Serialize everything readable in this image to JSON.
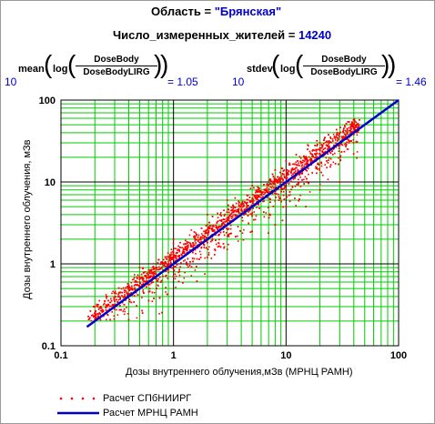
{
  "header": {
    "region_label": "Область = ",
    "region_value": "\"Брянская\"",
    "count_label": "Число_измеренных_жителей = ",
    "count_value": "14240"
  },
  "equations": {
    "mean": {
      "base": "10",
      "fn": "mean",
      "log": "log",
      "numerator": "DoseBody",
      "denominator": "DoseBodyLIRG",
      "result": "= 1.05"
    },
    "stdev": {
      "base": "10",
      "fn": "stdev",
      "log": "log",
      "numerator": "DoseBody",
      "denominator": "DoseBodyLIRG",
      "result": "= 1.46"
    }
  },
  "chart_data": {
    "type": "scatter",
    "xscale": "log",
    "yscale": "log",
    "xlim": [
      0.1,
      100
    ],
    "ylim": [
      0.1,
      100
    ],
    "x_ticks": [
      "0.1",
      "1",
      "10",
      "100"
    ],
    "y_ticks": [
      "0.1",
      "1",
      "10",
      "100"
    ],
    "xlabel": "Дозы внутреннего облучения,мЗв   (МРНЦ РАМН)",
    "ylabel": "Дозы внутреннего облучения, мЗв",
    "grid": true,
    "colors": {
      "scatter": "#ff0000",
      "line": "#0000cc",
      "grid_major": "#000000",
      "grid_minor": "#00cc00"
    },
    "series": [
      {
        "name": "Расчет СПбНИИРГ",
        "type": "scatter",
        "n": 14240,
        "log10_ratio_mean": 1.05,
        "log10_ratio_sd": 1.46,
        "x_range": [
          0.17,
          45
        ],
        "representative_points": [
          [
            0.2,
            0.25
          ],
          [
            0.3,
            0.35
          ],
          [
            0.4,
            0.55
          ],
          [
            0.5,
            0.6
          ],
          [
            0.7,
            0.85
          ],
          [
            1,
            1.3
          ],
          [
            1.5,
            1.6
          ],
          [
            2,
            2.6
          ],
          [
            3,
            3.2
          ],
          [
            4,
            4.5
          ],
          [
            5,
            6
          ],
          [
            7,
            7.5
          ],
          [
            10,
            11
          ],
          [
            15,
            14
          ],
          [
            20,
            22
          ],
          [
            30,
            28
          ],
          [
            40,
            38
          ],
          [
            1,
            0.7
          ],
          [
            2,
            1.2
          ],
          [
            3,
            1.5
          ],
          [
            5,
            2.5
          ],
          [
            8,
            3
          ],
          [
            10,
            5
          ],
          [
            15,
            5
          ],
          [
            20,
            8
          ],
          [
            30,
            10
          ],
          [
            0.5,
            0.9
          ],
          [
            1,
            2
          ],
          [
            2,
            4
          ],
          [
            3,
            6
          ],
          [
            5,
            9
          ],
          [
            8,
            14
          ],
          [
            10,
            18
          ],
          [
            20,
            30
          ]
        ]
      },
      {
        "name": "Расчет МРНЦ  РАМН",
        "type": "line",
        "x": [
          0.17,
          100
        ],
        "y": [
          0.17,
          100
        ]
      }
    ]
  }
}
